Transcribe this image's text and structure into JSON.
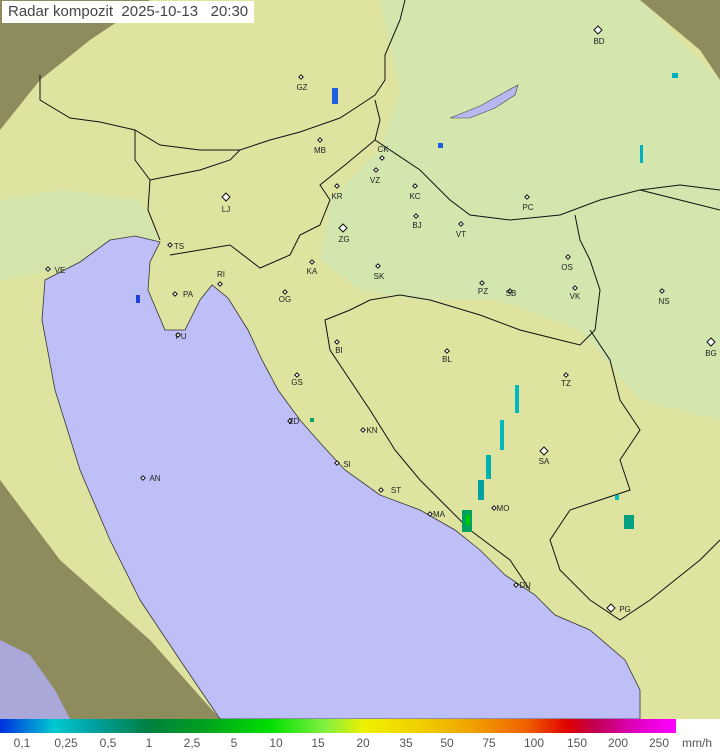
{
  "title": "Radar kompozit  2025-10-13   20:30",
  "legend": {
    "labels": [
      "0,1",
      "0,25",
      "0,5",
      "1",
      "2,5",
      "5",
      "10",
      "15",
      "20",
      "35",
      "50",
      "75",
      "100",
      "150",
      "200",
      "250"
    ],
    "unit": "mm/h"
  },
  "cities": [
    "BD",
    "GZ",
    "MB",
    "CK",
    "VZ",
    "KR",
    "KC",
    "LJ",
    "PC",
    "ZG",
    "BJ",
    "VT",
    "TS",
    "VE",
    "KA",
    "SK",
    "OS",
    "RI",
    "PA",
    "OG",
    "PZ",
    "SB",
    "VK",
    "NS",
    "PU",
    "BG",
    "BI",
    "BL",
    "TZ",
    "GS",
    "ZD",
    "KN",
    "SA",
    "SI",
    "AN",
    "ST",
    "MO",
    "MA",
    "DU",
    "PG"
  ],
  "colors": {
    "sea": "#bfbff8",
    "land_in_range": "#e4e8a8",
    "land_out_of_range": "#8a8a5a",
    "border": "#111111"
  }
}
